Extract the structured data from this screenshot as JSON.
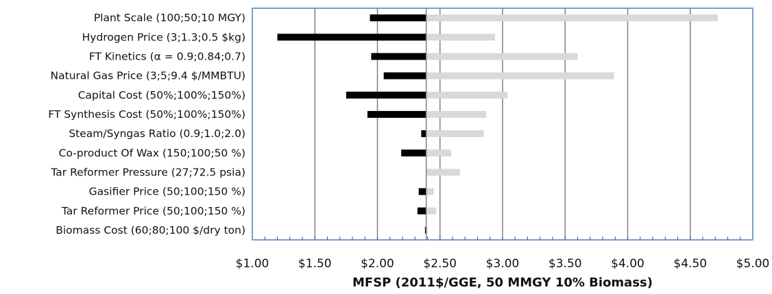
{
  "chart_data": {
    "type": "bar",
    "orientation": "horizontal",
    "subtype": "tornado",
    "title": "",
    "xlabel": "MFSP (2011$/GGE, 50 MMGY 10% Biomass)",
    "ylabel": "",
    "xlim": [
      1.0,
      5.0
    ],
    "x_ticks": [
      1.0,
      1.5,
      2.0,
      2.5,
      3.0,
      3.5,
      4.0,
      4.5,
      5.0
    ],
    "x_tick_labels": [
      "$1.00",
      "$1.50",
      "$2.00",
      "$2.50",
      "$3.00",
      "$3.50",
      "$4.00",
      "$4.50",
      "$5.00"
    ],
    "grid": "vertical",
    "legend": "none",
    "baseline": 2.39,
    "colors": {
      "low": "#000000",
      "high": "#d9d9d9",
      "frame": "#4a7ebb",
      "grid": "#7f7f7f",
      "baseline": "#7f7f7f"
    },
    "categories": [
      "Plant Scale (100;50;10 MGY)",
      "Hydrogen Price (3;1.3;0.5 $kg)",
      "FT Kinetics (α = 0.9;0.84;0.7)",
      "Natural Gas Price (3;5;9.4 $/MMBTU)",
      "Capital Cost (50%;100%;150%)",
      "FT Synthesis Cost (50%;100%;150%)",
      "Steam/Syngas Ratio (0.9;1.0;2.0)",
      "Co-product Of Wax (150;100;50 %)",
      "Tar Reformer Pressure (27;72.5 psia)",
      "Gasifier Price (50;100;150 %)",
      "Tar Reformer Price (50;100;150 %)",
      "Biomass Cost (60;80;100 $/dry ton)"
    ],
    "series": [
      {
        "color": "#000000",
        "values": [
          1.94,
          1.2,
          1.95,
          2.05,
          1.75,
          1.92,
          2.35,
          2.19,
          2.39,
          2.33,
          2.32,
          2.38
        ]
      },
      {
        "color": "#d9d9d9",
        "values": [
          4.72,
          2.94,
          3.6,
          3.89,
          3.04,
          2.87,
          2.85,
          2.59,
          2.66,
          2.45,
          2.47,
          2.4
        ]
      }
    ]
  }
}
